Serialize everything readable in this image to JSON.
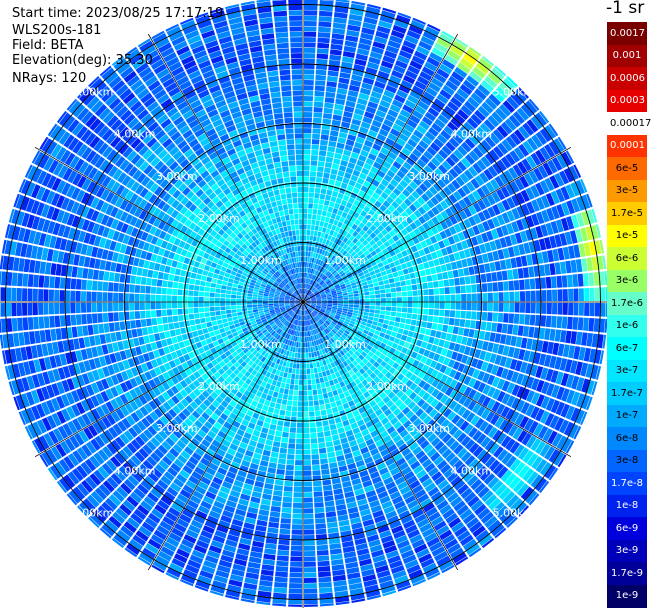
{
  "header": {
    "start_time": "Start time: 2023/08/25 17:17:19",
    "device": "WLS200s-181",
    "field": "Field: BETA",
    "elevation": "Elevation(deg): 35.30",
    "nrays": "NRays: 120"
  },
  "colorbar": {
    "unit": "-1 sr",
    "labels": [
      "0.0017",
      "0.001",
      "0.0006",
      "0.0003",
      "0.00017",
      "0.0001",
      "6e-5",
      "3e-5",
      "1.7e-5",
      "1e-5",
      "6e-6",
      "3e-6",
      "1.7e-6",
      "1e-6",
      "6e-7",
      "3e-7",
      "1.7e-7",
      "1e-7",
      "6e-8",
      "3e-8",
      "1.7e-8",
      "1e-8",
      "6e-9",
      "3e-9",
      "1.7e-9",
      "1e-9"
    ],
    "colors": [
      "#7a0000",
      "#a00000",
      "#c80000",
      "#e60000",
      "#ffffff",
      "#ff3300",
      "#ff6a00",
      "#ff9900",
      "#ffcc00",
      "#ffff00",
      "#ccff33",
      "#99ff66",
      "#66ffcc",
      "#33ffee",
      "#00ffff",
      "#00e6ff",
      "#00ccff",
      "#00aaff",
      "#0088ff",
      "#0066ff",
      "#0044ff",
      "#0022ee",
      "#0000dd",
      "#0000bb",
      "#000099",
      "#000066"
    ]
  },
  "chart_data": {
    "type": "heatmap",
    "projection": "polar PPI",
    "field": "BETA",
    "unit": "m-1 sr-1",
    "n_rays": 120,
    "elevation_deg": 35.3,
    "range_rings_km": [
      1,
      2,
      3,
      4,
      5
    ],
    "ring_labels": [
      "1.00km",
      "2.00km",
      "3.00km",
      "4.00km",
      "5.00km"
    ],
    "max_range_km": 5.1,
    "spokes_deg": [
      0,
      30,
      60,
      90,
      120,
      150,
      180,
      210,
      240,
      270,
      300,
      330
    ],
    "color_scale": [
      0.0017,
      0.001,
      0.0006,
      0.0003,
      0.00017,
      0.0001,
      6e-05,
      3e-05,
      1.7e-05,
      1e-05,
      6e-06,
      3e-06,
      1.7e-06,
      1e-06,
      6e-07,
      3e-07,
      1.7e-07,
      1e-07,
      6e-08,
      3e-08,
      1.7e-08,
      1e-08,
      6e-09,
      3e-09,
      1.7e-09,
      1e-09
    ],
    "range_profile": [
      {
        "range_km": 0.2,
        "beta": 3e-08
      },
      {
        "range_km": 0.6,
        "beta": 6e-08
      },
      {
        "range_km": 1.0,
        "beta": 1.7e-07
      },
      {
        "range_km": 1.5,
        "beta": 3e-07
      },
      {
        "range_km": 2.0,
        "beta": 3e-07
      },
      {
        "range_km": 2.5,
        "beta": 1.7e-07
      },
      {
        "range_km": 3.0,
        "beta": 6e-08
      },
      {
        "range_km": 3.5,
        "beta": 6e-08
      },
      {
        "range_km": 4.0,
        "beta": 3e-08
      },
      {
        "range_km": 4.5,
        "beta": 3e-08
      },
      {
        "range_km": 5.0,
        "beta": 3e-08
      }
    ],
    "hotspots": [
      {
        "azimuth_deg": 35,
        "range_km": 4.9,
        "beta": 1e-05
      },
      {
        "azimuth_deg": 80,
        "range_km": 4.9,
        "beta": 1e-05
      },
      {
        "azimuth_deg": 130,
        "range_km": 4.6,
        "beta": 1e-06
      }
    ]
  }
}
